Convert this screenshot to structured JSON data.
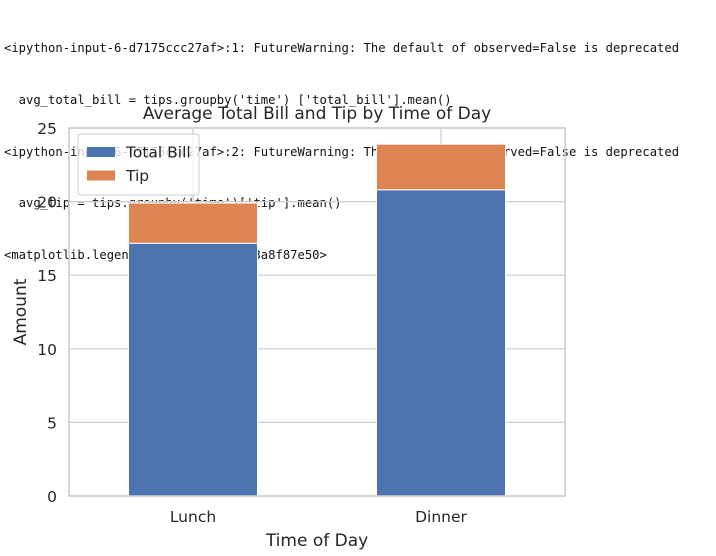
{
  "console": {
    "lines": [
      "<ipython-input-6-d7175ccc27af>:1: FutureWarning: The default of observed=False is deprecated",
      "  avg_total_bill = tips.groupby('time') ['total_bill'].mean()",
      "<ipython-input-6-d7175ccc27af>:2: FutureWarning: The default of observed=False is deprecated",
      "  avg_tip = tips.groupby('time')['tip'].mean()",
      "<matplotlib.legend.Legend at 0x7f93a8f87e50>"
    ]
  },
  "chart_data": {
    "type": "bar",
    "stacked": true,
    "title": "Average Total Bill and Tip by Time of Day",
    "xlabel": "Time of Day",
    "ylabel": "Amount",
    "categories": [
      "Lunch",
      "Dinner"
    ],
    "series": [
      {
        "name": "Total Bill",
        "values": [
          17.17,
          20.8
        ],
        "color": "#4c72b0"
      },
      {
        "name": "Tip",
        "values": [
          2.73,
          3.1
        ],
        "color": "#dd8452"
      }
    ],
    "ylim": [
      0,
      25
    ],
    "yticks": [
      "0",
      "5",
      "10",
      "15",
      "20",
      "25"
    ],
    "grid": true,
    "legend_position": "upper-left"
  }
}
